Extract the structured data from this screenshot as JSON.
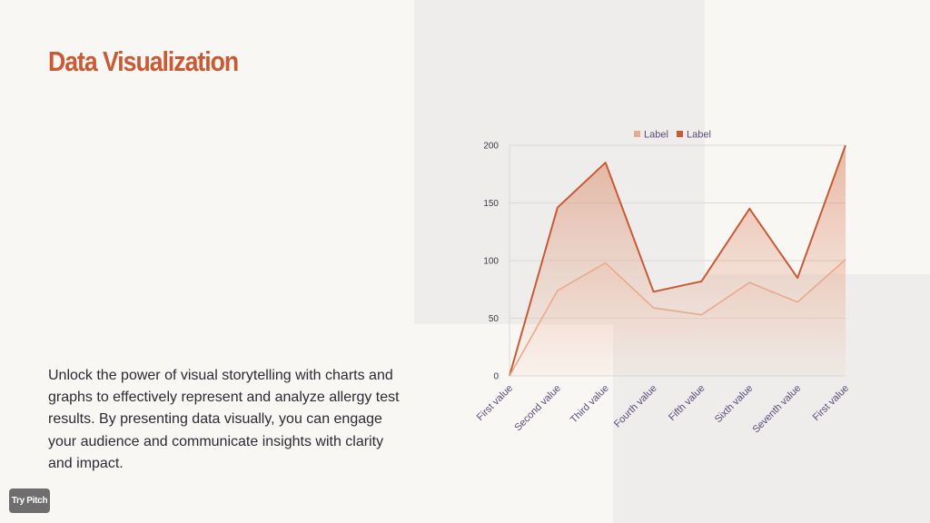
{
  "title": "Data Visualization",
  "body": "Unlock the power of visual storytelling with charts and graphs to effectively represent and analyze allergy test results. By presenting data visually, you can engage your audience and communicate insights with clarity and impact.",
  "badge": "Try Pitch",
  "colors": {
    "accent": "#c85a35",
    "series_light": "#e9a98e",
    "series_dark": "#c85a35",
    "text": "#2b2b33"
  },
  "chart_data": {
    "type": "area",
    "categories": [
      "First value",
      "Second value",
      "Third value",
      "Fourth value",
      "Fifth value",
      "Sixth value",
      "Seventh value",
      "First value"
    ],
    "series": [
      {
        "name": "Label",
        "values": [
          0,
          74,
          98,
          59,
          53,
          81,
          64,
          101
        ]
      },
      {
        "name": "Label",
        "values": [
          0,
          146,
          185,
          73,
          82,
          145,
          85,
          200
        ]
      }
    ],
    "ylim": [
      0,
      200
    ],
    "yticks": [
      0,
      50,
      100,
      150,
      200
    ],
    "grid": true,
    "legend": "top-center"
  }
}
